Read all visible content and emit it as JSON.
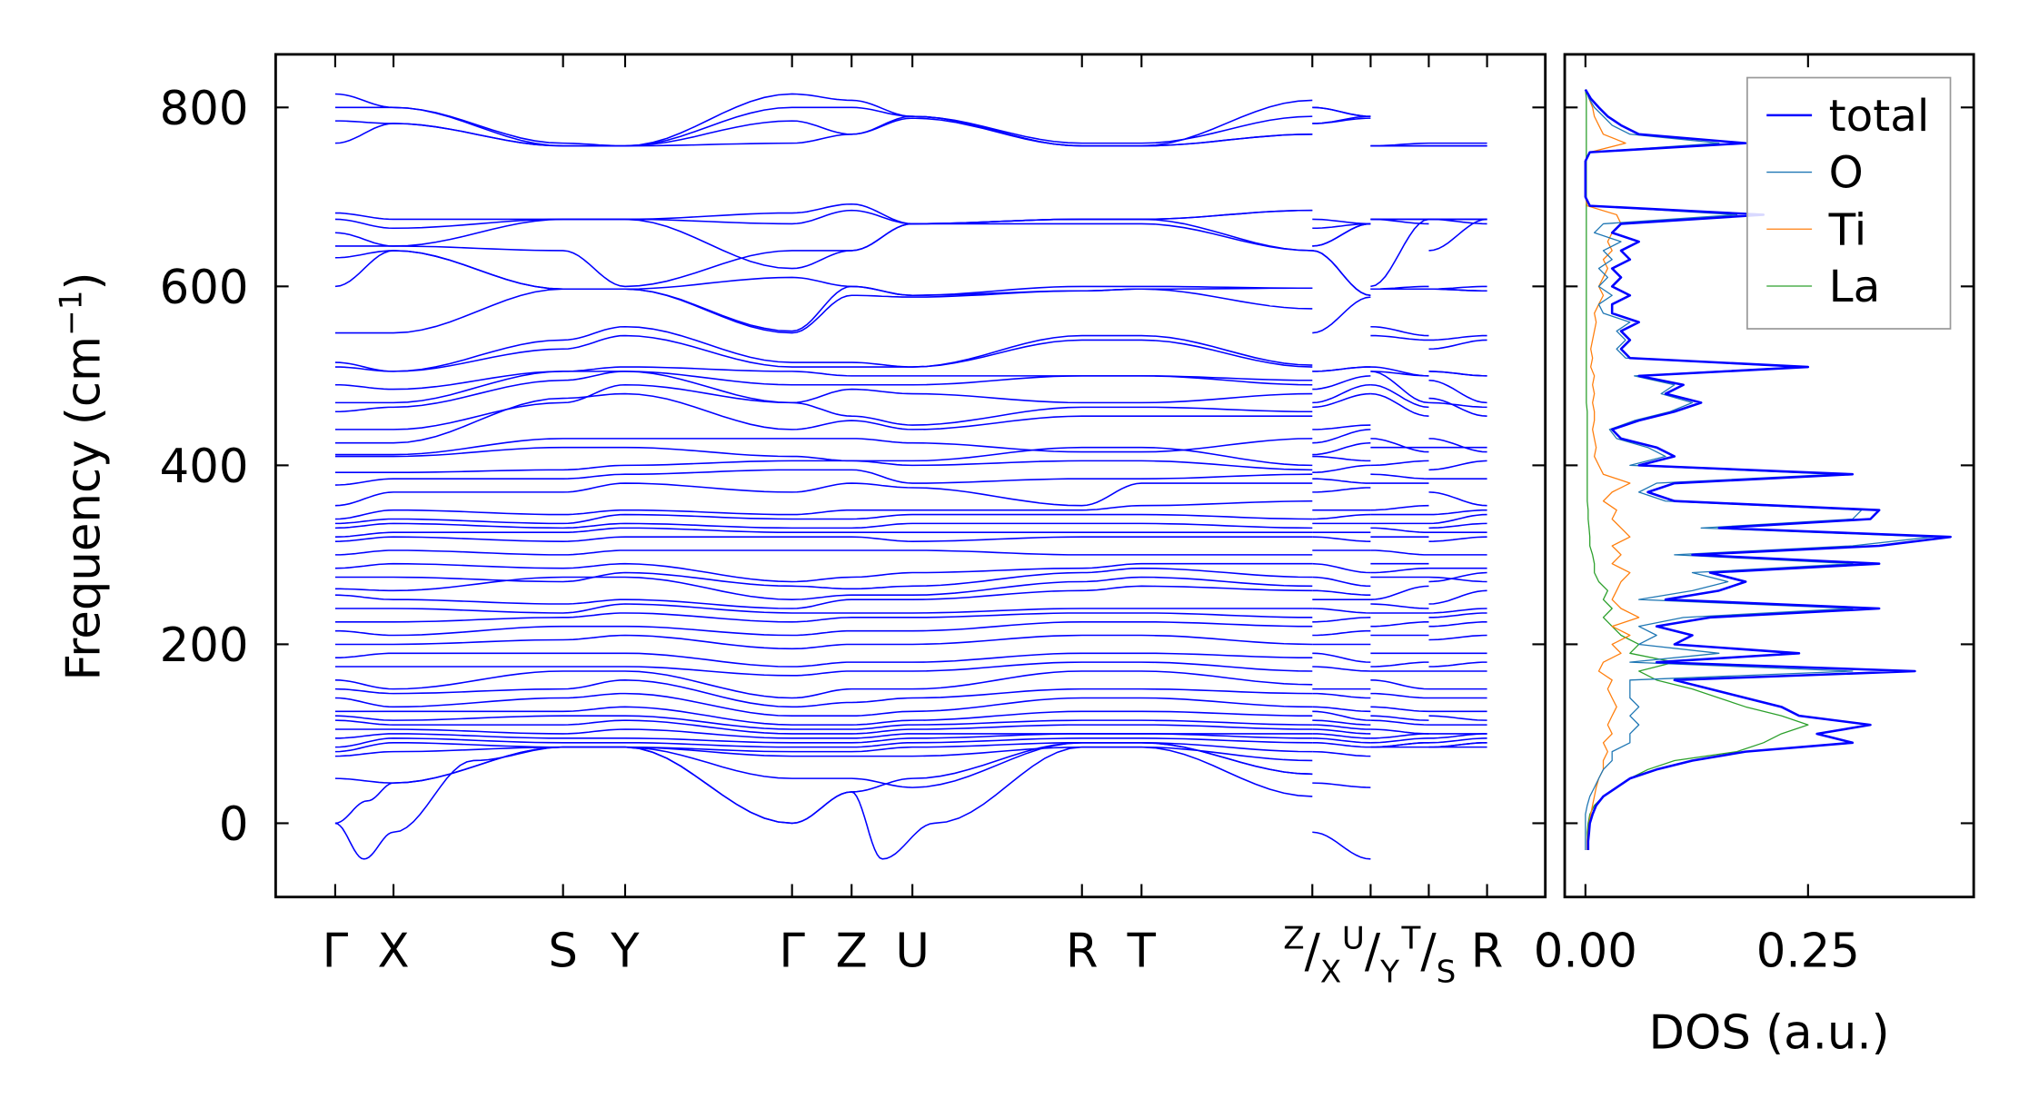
{
  "chart_data": [
    {
      "type": "line",
      "name": "phonon-band-structure",
      "title": "",
      "ylabel": {
        "main": "Frequency (cm",
        "sup": "−1",
        "end": ")"
      },
      "ylim": [
        -83,
        859
      ],
      "yticks": [
        0,
        200,
        400,
        600,
        800
      ],
      "ytick_labels": [
        "0",
        "200",
        "400",
        "600",
        "800"
      ],
      "xlim": [
        -0.05,
        1.05
      ],
      "line_color": "#0000ff",
      "kpoints": [
        {
          "label": "Γ",
          "k": 0
        },
        {
          "label": "X",
          "k": 0.0506
        },
        {
          "label": "S",
          "k": 0.1978
        },
        {
          "label": "Y",
          "k": 0.2517
        },
        {
          "label": "Γ",
          "k": 0.3966
        },
        {
          "label": "Z",
          "k": 0.4483
        },
        {
          "label": "U",
          "k": 0.5011
        },
        {
          "label": "R",
          "k": 0.6483
        },
        {
          "label": "T",
          "k": 0.7
        },
        {
          "top": "Z",
          "bottom": "X",
          "k": 0.8483
        },
        {
          "top": "U",
          "bottom": "Y",
          "k": 0.8989
        },
        {
          "top": "T",
          "bottom": "S",
          "k": 0.9494
        },
        {
          "label": "R",
          "k": 1.0
        }
      ],
      "main_path_k": [
        0,
        0.0506,
        0.1978,
        0.2517,
        0.3966,
        0.4483,
        0.5011,
        0.6483,
        0.7,
        0.8483
      ],
      "short_segments": [
        {
          "from": "X",
          "to": "U",
          "k": [
            0.8483,
            0.8989
          ]
        },
        {
          "from": "Y",
          "to": "T",
          "k": [
            0.8989,
            0.9494
          ]
        },
        {
          "from": "S",
          "to": "R",
          "k": [
            0.9494,
            1.0
          ]
        }
      ],
      "bands": [
        [
          815,
          800,
          757,
          757,
          815,
          808,
          790,
          757,
          757,
          808
        ],
        [
          800,
          800,
          760,
          757,
          800,
          800,
          790,
          760,
          760,
          790
        ],
        [
          785,
          782,
          757,
          757,
          785,
          770,
          790,
          757,
          757,
          770
        ],
        [
          760,
          782,
          757,
          757,
          760,
          770,
          788,
          757,
          757,
          770
        ],
        [
          682,
          675,
          675,
          675,
          682,
          692,
          670,
          675,
          675,
          685
        ],
        [
          675,
          665,
          675,
          675,
          670,
          685,
          670,
          675,
          675,
          685
        ],
        [
          660,
          645,
          675,
          675,
          620,
          640,
          670,
          670,
          670,
          640
        ],
        [
          645,
          645,
          640,
          600,
          640,
          640,
          670,
          675,
          675,
          640
        ],
        [
          632,
          640,
          597,
          597,
          610,
          600,
          590,
          600,
          600,
          598
        ],
        [
          600,
          640,
          597,
          597,
          550,
          600,
          590,
          595,
          597,
          598
        ],
        [
          548,
          548,
          597,
          597,
          548,
          590,
          588,
          595,
          597,
          575
        ],
        [
          515,
          505,
          540,
          555,
          515,
          515,
          510,
          545,
          545,
          512
        ],
        [
          510,
          505,
          530,
          545,
          510,
          510,
          510,
          540,
          540,
          510
        ],
        [
          490,
          485,
          505,
          510,
          505,
          500,
          500,
          500,
          500,
          495
        ],
        [
          470,
          470,
          505,
          505,
          490,
          490,
          490,
          500,
          500,
          490
        ],
        [
          460,
          465,
          495,
          505,
          470,
          485,
          480,
          470,
          470,
          480
        ],
        [
          440,
          440,
          470,
          490,
          470,
          455,
          445,
          465,
          465,
          460
        ],
        [
          425,
          425,
          475,
          480,
          440,
          450,
          440,
          455,
          455,
          455
        ],
        [
          412,
          412,
          430,
          430,
          430,
          430,
          425,
          415,
          415,
          430
        ],
        [
          410,
          410,
          420,
          420,
          410,
          405,
          405,
          420,
          420,
          400
        ],
        [
          392,
          392,
          395,
          400,
          405,
          405,
          400,
          405,
          405,
          395
        ],
        [
          378,
          385,
          385,
          390,
          395,
          395,
          380,
          385,
          385,
          390
        ],
        [
          355,
          370,
          370,
          380,
          370,
          380,
          375,
          355,
          380,
          380
        ],
        [
          340,
          350,
          345,
          350,
          345,
          350,
          350,
          350,
          355,
          360
        ],
        [
          335,
          340,
          335,
          345,
          340,
          340,
          345,
          345,
          345,
          340
        ],
        [
          330,
          335,
          330,
          335,
          330,
          330,
          335,
          335,
          335,
          330
        ],
        [
          320,
          325,
          325,
          330,
          325,
          325,
          325,
          325,
          325,
          325
        ],
        [
          315,
          320,
          315,
          320,
          320,
          320,
          315,
          320,
          320,
          320
        ],
        [
          300,
          305,
          300,
          305,
          305,
          305,
          305,
          300,
          300,
          300
        ],
        [
          285,
          290,
          285,
          290,
          270,
          275,
          280,
          285,
          290,
          290
        ],
        [
          275,
          275,
          270,
          280,
          265,
          262,
          265,
          280,
          285,
          275
        ],
        [
          262,
          260,
          275,
          275,
          250,
          255,
          255,
          270,
          275,
          265
        ],
        [
          255,
          250,
          245,
          250,
          240,
          250,
          250,
          260,
          265,
          260
        ],
        [
          240,
          240,
          235,
          245,
          235,
          235,
          235,
          240,
          240,
          240
        ],
        [
          225,
          225,
          230,
          235,
          225,
          230,
          230,
          235,
          235,
          230
        ],
        [
          215,
          210,
          220,
          220,
          210,
          215,
          215,
          225,
          225,
          220
        ],
        [
          200,
          200,
          205,
          210,
          195,
          200,
          200,
          210,
          210,
          200
        ],
        [
          185,
          190,
          190,
          190,
          175,
          180,
          180,
          190,
          190,
          185
        ],
        [
          175,
          175,
          175,
          175,
          165,
          170,
          170,
          180,
          180,
          170
        ],
        [
          160,
          150,
          170,
          170,
          140,
          150,
          150,
          170,
          170,
          155
        ],
        [
          150,
          145,
          150,
          160,
          130,
          135,
          140,
          150,
          150,
          145
        ],
        [
          140,
          130,
          140,
          145,
          120,
          120,
          125,
          140,
          140,
          130
        ],
        [
          125,
          125,
          125,
          130,
          110,
          110,
          115,
          125,
          125,
          120
        ],
        [
          120,
          115,
          120,
          120,
          105,
          105,
          110,
          115,
          115,
          110
        ],
        [
          115,
          110,
          110,
          115,
          100,
          100,
          105,
          110,
          110,
          105
        ],
        [
          105,
          105,
          100,
          105,
          95,
          95,
          100,
          100,
          100,
          100
        ],
        [
          95,
          100,
          95,
          95,
          90,
          90,
          95,
          100,
          100,
          95
        ],
        [
          85,
          95,
          90,
          90,
          85,
          85,
          90,
          95,
          95,
          90
        ],
        [
          80,
          90,
          85,
          85,
          80,
          80,
          85,
          90,
          90,
          80
        ],
        [
          75,
          80,
          85,
          85,
          75,
          75,
          75,
          85,
          85,
          70
        ],
        [
          50,
          45,
          85,
          85,
          50,
          50,
          40,
          90,
          90,
          55
        ],
        {
          "k": [
            0,
            0.028,
            0.0506,
            0.1978,
            0.2517,
            0.3966,
            0.4483,
            0.5011,
            0.6483,
            0.7,
            0.8483
          ],
          "v": [
            0,
            25,
            45,
            85,
            85,
            0,
            35,
            50,
            90,
            90,
            55
          ]
        },
        {
          "k": [
            0,
            0.025,
            0.0506,
            0.12,
            0.1978,
            0.2517,
            0.3966,
            0.4483,
            0.475,
            0.52,
            0.6483,
            0.7,
            0.8483
          ],
          "v": [
            0,
            -40,
            -10,
            70,
            85,
            85,
            0,
            35,
            -40,
            0,
            85,
            85,
            30
          ],
          "short": [
            [
              -10,
              -40
            ]
          ]
        }
      ]
    },
    {
      "type": "line",
      "name": "phonon-dos",
      "xlabel": "DOS (a.u.)",
      "xlim": [
        -0.023,
        0.436
      ],
      "xticks": [
        0,
        0.25
      ],
      "xtick_labels": [
        "0.00",
        "0.25"
      ],
      "ylim": [
        -83,
        859
      ],
      "yticks": [
        0,
        200,
        400,
        600,
        800
      ],
      "freq_start": -30,
      "freq_step": 10,
      "legend_position": "top-right",
      "series": [
        {
          "name": "total",
          "color": "#0000ff",
          "values": [
            0.003,
            0.003,
            0.004,
            0.005,
            0.008,
            0.012,
            0.02,
            0.035,
            0.05,
            0.08,
            0.12,
            0.18,
            0.3,
            0.26,
            0.32,
            0.24,
            0.22,
            0.18,
            0.14,
            0.1,
            0.37,
            0.08,
            0.24,
            0.1,
            0.12,
            0.08,
            0.14,
            0.33,
            0.09,
            0.15,
            0.18,
            0.14,
            0.33,
            0.12,
            0.33,
            0.41,
            0.15,
            0.32,
            0.33,
            0.1,
            0.07,
            0.1,
            0.3,
            0.06,
            0.1,
            0.08,
            0.04,
            0.03,
            0.06,
            0.1,
            0.13,
            0.09,
            0.11,
            0.06,
            0.25,
            0.05,
            0.04,
            0.05,
            0.04,
            0.06,
            0.03,
            0.03,
            0.05,
            0.03,
            0.04,
            0.03,
            0.05,
            0.04,
            0.06,
            0.03,
            0.04,
            0.2,
            0.005,
            0,
            0,
            0,
            0,
            0,
            0.005,
            0.18,
            0.06,
            0.04,
            0.025,
            0.015,
            0.006,
            0
          ]
        },
        {
          "name": "O",
          "color": "#1f77b4",
          "values": [
            0,
            0,
            0,
            0,
            0,
            0.002,
            0.005,
            0.01,
            0.015,
            0.02,
            0.03,
            0.03,
            0.05,
            0.05,
            0.06,
            0.05,
            0.06,
            0.05,
            0.05,
            0.05,
            0.3,
            0.05,
            0.15,
            0.06,
            0.08,
            0.06,
            0.11,
            0.3,
            0.06,
            0.12,
            0.16,
            0.12,
            0.3,
            0.1,
            0.3,
            0.39,
            0.13,
            0.3,
            0.31,
            0.09,
            0.06,
            0.08,
            0.28,
            0.05,
            0.09,
            0.07,
            0.035,
            0.027,
            0.055,
            0.095,
            0.12,
            0.085,
            0.1,
            0.055,
            0.24,
            0.045,
            0.035,
            0.045,
            0.035,
            0.05,
            0.02,
            0.015,
            0.03,
            0.015,
            0.025,
            0.015,
            0.03,
            0.02,
            0.04,
            0.01,
            0.02,
            0.17,
            0.005,
            0,
            0,
            0,
            0,
            0,
            0.005,
            0.15,
            0.05,
            0.03,
            0.02,
            0.01,
            0.004,
            0
          ]
        },
        {
          "name": "Ti",
          "color": "#ff7f0e",
          "values": [
            0.002,
            0.002,
            0.003,
            0.004,
            0.006,
            0.008,
            0.01,
            0.012,
            0.015,
            0.02,
            0.02,
            0.025,
            0.02,
            0.03,
            0.025,
            0.03,
            0.035,
            0.03,
            0.025,
            0.03,
            0.015,
            0.02,
            0.04,
            0.03,
            0.05,
            0.03,
            0.06,
            0.04,
            0.03,
            0.035,
            0.04,
            0.05,
            0.03,
            0.04,
            0.03,
            0.05,
            0.04,
            0.03,
            0.035,
            0.02,
            0.03,
            0.05,
            0.02,
            0.015,
            0.01,
            0.012,
            0.01,
            0.008,
            0.01,
            0.01,
            0.008,
            0.01,
            0.008,
            0.01,
            0.006,
            0.008,
            0.006,
            0.008,
            0.01,
            0.012,
            0.01,
            0.015,
            0.02,
            0.015,
            0.02,
            0.025,
            0.02,
            0.03,
            0.025,
            0.03,
            0.04,
            0.035,
            0.002,
            0,
            0,
            0,
            0,
            0,
            0.005,
            0.045,
            0.02,
            0.015,
            0.01,
            0.008,
            0.004,
            0
          ]
        },
        {
          "name": "La",
          "color": "#2ca02c",
          "values": [
            0.002,
            0.002,
            0.002,
            0.003,
            0.005,
            0.01,
            0.02,
            0.035,
            0.05,
            0.07,
            0.1,
            0.17,
            0.2,
            0.22,
            0.25,
            0.22,
            0.18,
            0.15,
            0.12,
            0.08,
            0.06,
            0.1,
            0.05,
            0.06,
            0.04,
            0.03,
            0.02,
            0.03,
            0.02,
            0.025,
            0.015,
            0.01,
            0.01,
            0.008,
            0.005,
            0.005,
            0.004,
            0.003,
            0.003,
            0.002,
            0.002,
            0.002,
            0.002,
            0.002,
            0.002,
            0.002,
            0.002,
            0.002,
            0.002,
            0.002,
            0.001,
            0.001,
            0.001,
            0.001,
            0.001,
            0.001,
            0.001,
            0.001,
            0.001,
            0.001,
            0.001,
            0.001,
            0.001,
            0.001,
            0.001,
            0.001,
            0.001,
            0.001,
            0.001,
            0.001,
            0.001,
            0.001,
            0.001,
            0.001,
            0.001,
            0.001,
            0.001,
            0.001,
            0.001,
            0.001,
            0.001,
            0.001,
            0.001,
            0.001,
            0.001,
            0
          ]
        }
      ]
    }
  ]
}
